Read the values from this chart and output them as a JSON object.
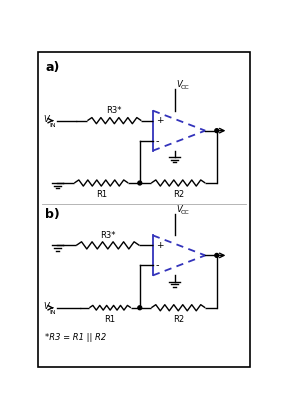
{
  "fig_width": 2.81,
  "fig_height": 4.15,
  "dpi": 100,
  "bg_color": "#ffffff",
  "border_color": "#000000",
  "line_color": "#000000",
  "opamp_solid_color": "#3333bb",
  "opamp_dash_color": "#3333bb",
  "label_a": "a)",
  "label_b": "b)",
  "footnote": "*R3 = R1 || R2",
  "r1_label": "R1",
  "r2_label": "R2",
  "r3_label": "R3*",
  "plus_label": "+",
  "minus_label": "-"
}
